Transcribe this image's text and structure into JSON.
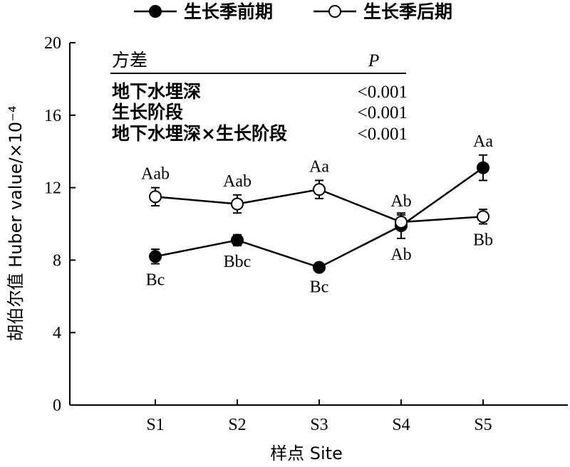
{
  "chart_data": {
    "type": "line",
    "xlabel": "样点 Site",
    "ylabel": "胡伯尔值 Huber value/×10⁻⁴",
    "categories": [
      "S1",
      "S2",
      "S3",
      "S4",
      "S5"
    ],
    "ylim": [
      0,
      20
    ],
    "yticks": [
      0,
      4,
      8,
      12,
      16,
      20
    ],
    "grid": false,
    "legend_position": "top",
    "series": [
      {
        "name": "生长季前期",
        "marker": "filled-circle",
        "values": [
          8.2,
          9.1,
          7.6,
          9.9,
          13.1
        ],
        "errors": [
          0.4,
          0.3,
          0.2,
          0.7,
          0.7
        ],
        "labels": [
          "Bc",
          "Bbc",
          "Bc",
          "Ab",
          "Aa"
        ]
      },
      {
        "name": "生长季后期",
        "marker": "open-circle",
        "values": [
          11.5,
          11.1,
          11.9,
          10.1,
          10.4
        ],
        "errors": [
          0.5,
          0.5,
          0.5,
          0.4,
          0.4
        ],
        "labels": [
          "Aab",
          "Aab",
          "Aa",
          "Ab",
          "Bb"
        ]
      }
    ],
    "anova_table": {
      "header_factor": "方差",
      "header_p": "P",
      "rows": [
        {
          "factor": "地下水埋深",
          "p": "<0.001"
        },
        {
          "factor": "生长阶段",
          "p": "<0.001"
        },
        {
          "factor": "地下水埋深×生长阶段",
          "p": "<0.001"
        }
      ]
    }
  }
}
